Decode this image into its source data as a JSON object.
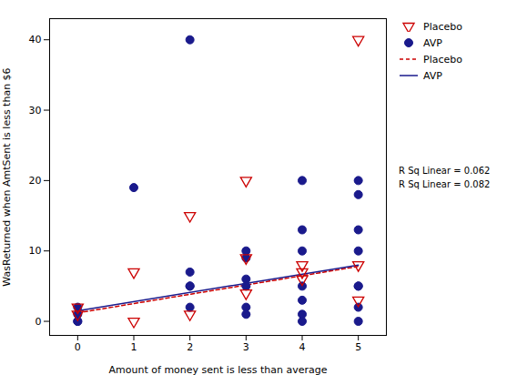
{
  "chart_data": {
    "type": "scatter",
    "xlabel": "Amount of money sent is less than average",
    "ylabel": "WasReturned when AmtSent is less than $6",
    "xlim": [
      -0.5,
      5.5
    ],
    "ylim": [
      -2,
      43
    ],
    "xticks": [
      0,
      1,
      2,
      3,
      4,
      5
    ],
    "yticks": [
      0,
      10,
      20,
      30,
      40
    ],
    "grid": false,
    "legend": "right",
    "series": [
      {
        "name": "Placebo",
        "type": "scatter",
        "marker": "triangle-down-open",
        "color": "#cc0000",
        "x": [
          0,
          0,
          1,
          1,
          2,
          2,
          3,
          3,
          3,
          4,
          4,
          4,
          5,
          5,
          5
        ],
        "values": [
          2,
          1,
          7,
          0,
          15,
          1,
          20,
          9,
          4,
          8,
          7,
          6,
          40,
          8,
          3
        ]
      },
      {
        "name": "AVP",
        "type": "scatter",
        "marker": "circle",
        "color": "#1a1a8c",
        "x": [
          0,
          0,
          0,
          0,
          1,
          2,
          2,
          2,
          2,
          2,
          3,
          3,
          3,
          3,
          3,
          3,
          4,
          4,
          4,
          4,
          4,
          4,
          4,
          5,
          5,
          5,
          5,
          5,
          5,
          5,
          5
        ],
        "values": [
          2,
          1,
          0,
          0,
          19,
          40,
          7,
          5,
          5,
          2,
          10,
          9,
          6,
          5,
          2,
          1,
          20,
          13,
          10,
          5,
          3,
          1,
          0,
          20,
          18,
          13,
          10,
          5,
          5,
          2,
          0
        ]
      },
      {
        "name": "Placebo",
        "type": "line",
        "line_style": "dashed",
        "color": "#cc0000",
        "x": [
          0,
          5
        ],
        "values": [
          1.2,
          7.8
        ]
      },
      {
        "name": "AVP",
        "type": "line",
        "line_style": "solid",
        "color": "#1a1a8c",
        "x": [
          0,
          5
        ],
        "values": [
          1.5,
          8.0
        ]
      }
    ],
    "annotations": [
      "R Sq Linear = 0.062",
      "R Sq Linear = 0.082"
    ]
  }
}
